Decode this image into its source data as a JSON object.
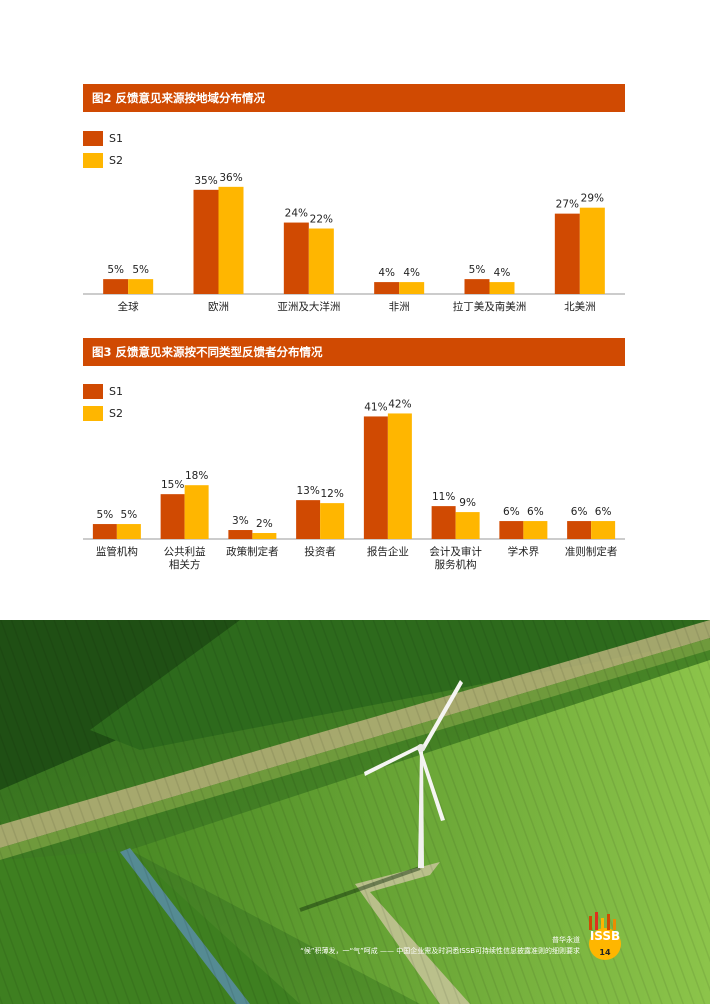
{
  "figures": {
    "fig2": {
      "title": "图2 反馈意见来源按地域分布情况"
    },
    "fig3": {
      "title": "图3 反馈意见来源按不同类型反馈者分布情况"
    }
  },
  "legend": {
    "s1": "S1",
    "s2": "S2"
  },
  "colors": {
    "s1": "#d04a02",
    "s2": "#ffb600",
    "header": "#d04a02"
  },
  "chart_data": [
    {
      "type": "bar",
      "title": "图2 反馈意见来源按地域分布情况",
      "categories": [
        "全球",
        "欧洲",
        "亚洲及大洋洲",
        "非洲",
        "拉丁美及南美洲",
        "北美洲"
      ],
      "series": [
        {
          "name": "S1",
          "values": [
            5,
            35,
            24,
            4,
            5,
            27
          ]
        },
        {
          "name": "S2",
          "values": [
            5,
            36,
            22,
            4,
            4,
            29
          ]
        }
      ],
      "value_suffix": "%",
      "grid": false,
      "legend_position": "top-left"
    },
    {
      "type": "bar",
      "title": "图3 反馈意见来源按不同类型反馈者分布情况",
      "categories": [
        "监管机构",
        "公共利益\n相关方",
        "政策制定者",
        "投资者",
        "报告企业",
        "会计及审计\n服务机构",
        "学术界",
        "准则制定者"
      ],
      "series": [
        {
          "name": "S1",
          "values": [
            5,
            15,
            3,
            13,
            41,
            11,
            6,
            6
          ]
        },
        {
          "name": "S2",
          "values": [
            5,
            18,
            2,
            12,
            42,
            9,
            6,
            6
          ]
        }
      ],
      "value_suffix": "%",
      "grid": false,
      "legend_position": "top-left"
    }
  ],
  "footer": {
    "brand": "普华永道",
    "caption": "“候”积薄发，一“气”呵成 —— 中国企业需及时洞悉ISSB可持续性信息披露准则的细则要求",
    "logo_text": "ISSB",
    "page_number": "14"
  }
}
